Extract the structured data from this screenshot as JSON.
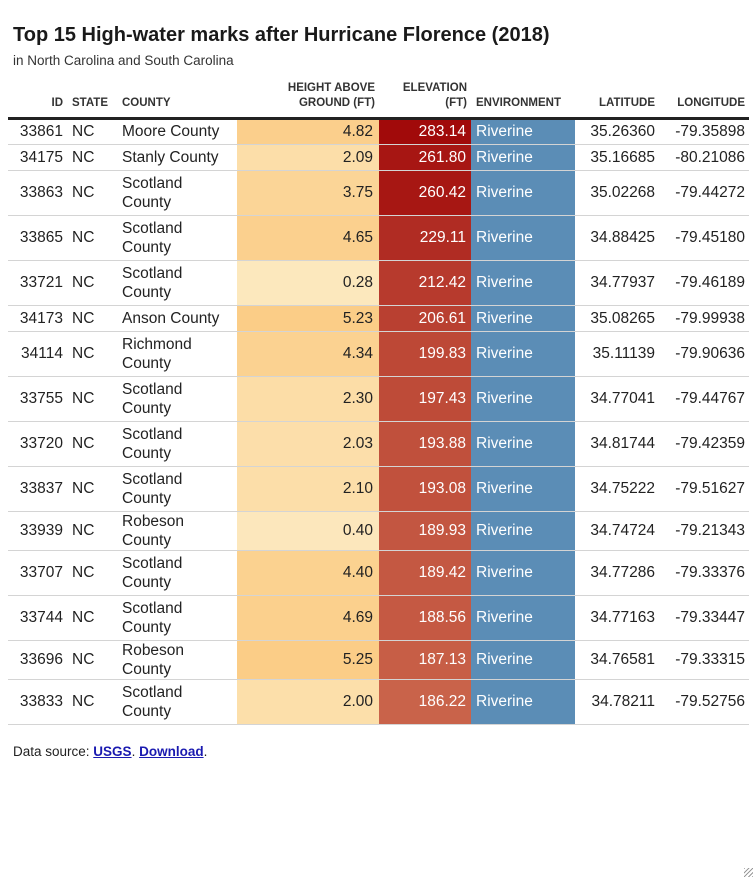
{
  "title": "Top 15 High-water marks after Hurricane Florence (2018)",
  "subtitle": "in North Carolina and South Carolina",
  "columns": {
    "id": "ID",
    "state": "STATE",
    "county": "COUNTY",
    "height": "HEIGHT ABOVE GROUND (FT)",
    "elevation": "ELEVATION (FT)",
    "environment": "ENVIRONMENT",
    "latitude": "LATITUDE",
    "longitude": "LONGITUDE"
  },
  "rows": [
    {
      "id": "33861",
      "state": "NC",
      "county": "Moore County",
      "height": "4.82",
      "elevation": "283.14",
      "environment": "Riverine",
      "latitude": "35.26360",
      "longitude": "-79.35898"
    },
    {
      "id": "34175",
      "state": "NC",
      "county": "Stanly County",
      "height": "2.09",
      "elevation": "261.80",
      "environment": "Riverine",
      "latitude": "35.16685",
      "longitude": "-80.21086"
    },
    {
      "id": "33863",
      "state": "NC",
      "county": "Scotland County",
      "height": "3.75",
      "elevation": "260.42",
      "environment": "Riverine",
      "latitude": "35.02268",
      "longitude": "-79.44272"
    },
    {
      "id": "33865",
      "state": "NC",
      "county": "Scotland County",
      "height": "4.65",
      "elevation": "229.11",
      "environment": "Riverine",
      "latitude": "34.88425",
      "longitude": "-79.45180"
    },
    {
      "id": "33721",
      "state": "NC",
      "county": "Scotland County",
      "height": "0.28",
      "elevation": "212.42",
      "environment": "Riverine",
      "latitude": "34.77937",
      "longitude": "-79.46189"
    },
    {
      "id": "34173",
      "state": "NC",
      "county": "Anson County",
      "height": "5.23",
      "elevation": "206.61",
      "environment": "Riverine",
      "latitude": "35.08265",
      "longitude": "-79.99938"
    },
    {
      "id": "34114",
      "state": "NC",
      "county": "Richmond County",
      "height": "4.34",
      "elevation": "199.83",
      "environment": "Riverine",
      "latitude": "35.11139",
      "longitude": "-79.90636"
    },
    {
      "id": "33755",
      "state": "NC",
      "county": "Scotland County",
      "height": "2.30",
      "elevation": "197.43",
      "environment": "Riverine",
      "latitude": "34.77041",
      "longitude": "-79.44767"
    },
    {
      "id": "33720",
      "state": "NC",
      "county": "Scotland County",
      "height": "2.03",
      "elevation": "193.88",
      "environment": "Riverine",
      "latitude": "34.81744",
      "longitude": "-79.42359"
    },
    {
      "id": "33837",
      "state": "NC",
      "county": "Scotland County",
      "height": "2.10",
      "elevation": "193.08",
      "environment": "Riverine",
      "latitude": "34.75222",
      "longitude": "-79.51627"
    },
    {
      "id": "33939",
      "state": "NC",
      "county": "Robeson County",
      "height": "0.40",
      "elevation": "189.93",
      "environment": "Riverine",
      "latitude": "34.74724",
      "longitude": "-79.21343"
    },
    {
      "id": "33707",
      "state": "NC",
      "county": "Scotland County",
      "height": "4.40",
      "elevation": "189.42",
      "environment": "Riverine",
      "latitude": "34.77286",
      "longitude": "-79.33376"
    },
    {
      "id": "33744",
      "state": "NC",
      "county": "Scotland County",
      "height": "4.69",
      "elevation": "188.56",
      "environment": "Riverine",
      "latitude": "34.77163",
      "longitude": "-79.33447"
    },
    {
      "id": "33696",
      "state": "NC",
      "county": "Robeson County",
      "height": "5.25",
      "elevation": "187.13",
      "environment": "Riverine",
      "latitude": "34.76581",
      "longitude": "-79.33315"
    },
    {
      "id": "33833",
      "state": "NC",
      "county": "Scotland County",
      "height": "2.00",
      "elevation": "186.22",
      "environment": "Riverine",
      "latitude": "34.78211",
      "longitude": "-79.52756"
    }
  ],
  "footer": {
    "prefix": "Data source: ",
    "source_link": "USGS",
    "separator": ". ",
    "download_link": "Download",
    "suffix": "."
  },
  "colors": {
    "height_low": "#fce8bd",
    "height_high": "#fbcd87",
    "elevation_low": "#c9634a",
    "elevation_high": "#a10a0a",
    "environment_riverine": "#5b8db6",
    "link": "#1a1ab0"
  }
}
